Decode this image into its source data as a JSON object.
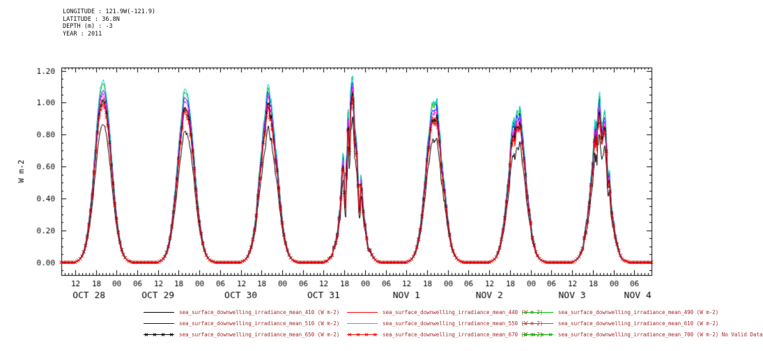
{
  "header": {
    "longitude": "LONGITUDE : 121.9W(-121.9)",
    "latitude": "LATITUDE : 36.8N",
    "depth": "DEPTH (m) : -3",
    "year": "YEAR : 2011"
  },
  "chart_data": {
    "type": "line",
    "title": "",
    "xlabel": "",
    "ylabel": "W m-2",
    "ylim": [
      -0.08,
      1.22
    ],
    "y_tick_labels": [
      "0.00",
      "0.20",
      "0.40",
      "0.60",
      "0.80",
      "1.00",
      "1.20"
    ],
    "y_minor_step": 0.05,
    "x_hours": {
      "start": 8,
      "end": 179
    },
    "x_major_start": 12,
    "x_major_step": 6,
    "x_minor_step": 1,
    "x_hour_tick_labels": [
      "12",
      "18",
      "00",
      "06"
    ],
    "day_labels": [
      {
        "label": "OCT 28",
        "hour": 16
      },
      {
        "label": "OCT 29",
        "hour": 36
      },
      {
        "label": "OCT 30",
        "hour": 60
      },
      {
        "label": "OCT 31",
        "hour": 84
      },
      {
        "label": "NOV 1",
        "hour": 108
      },
      {
        "label": "NOV 2",
        "hour": 132
      },
      {
        "label": "NOV 3",
        "hour": 156
      },
      {
        "label": "NOV 4",
        "hour": 175
      }
    ],
    "diurnal": {
      "solar_noon_utc_hour": 20.1,
      "sigma_hours": 2.4
    },
    "day_peaks_wm2": [
      1.14,
      1.08,
      1.06,
      0.99,
      1.03,
      1.0,
      1.02
    ],
    "day_variability": [
      0.015,
      0.02,
      0.05,
      0.22,
      0.05,
      0.06,
      0.13
    ],
    "legend_text_color": "#a52a2a",
    "axis_color": "#000000",
    "series": [
      {
        "name": "sea_surface_downwelling_irradiance_mean_410 (W m-2)",
        "color": "#000000",
        "marker": false,
        "scale": 0.76,
        "valid": true
      },
      {
        "name": "sea_surface_downwelling_irradiance_mean_440 (W m-2)",
        "color": "#ff0000",
        "marker": false,
        "scale": 0.9,
        "valid": true
      },
      {
        "name": "sea_surface_downwelling_irradiance_mean_490 (W m-2)",
        "color": "#00b400",
        "marker": false,
        "scale": 0.985,
        "valid": true
      },
      {
        "name": "sea_surface_downwelling_irradiance_mean_510 (W m-2)",
        "color": "#0000ff",
        "marker": false,
        "scale": 0.955,
        "valid": true
      },
      {
        "name": "sea_surface_downwelling_irradiance_mean_550 (W m-2)",
        "color": "#00d0d0",
        "marker": false,
        "scale": 1.0,
        "valid": true
      },
      {
        "name": "sea_surface_downwelling_irradiance_mean_610 (W m-2)",
        "color": "#ff00ff",
        "marker": false,
        "scale": 0.93,
        "valid": true
      },
      {
        "name": "sea_surface_downwelling_irradiance_mean_650 (W m-2)",
        "color": "#000000",
        "marker": true,
        "scale": 0.89,
        "valid": true
      },
      {
        "name": "sea_surface_downwelling_irradiance_mean_670 (W m-2)",
        "color": "#ff0000",
        "marker": true,
        "scale": 0.87,
        "valid": true
      },
      {
        "name": "sea_surface_downwelling_irradiance_mean_700 (W m-2) No Valid Data",
        "color": "#00b400",
        "marker": true,
        "scale": 0,
        "valid": false
      }
    ]
  }
}
